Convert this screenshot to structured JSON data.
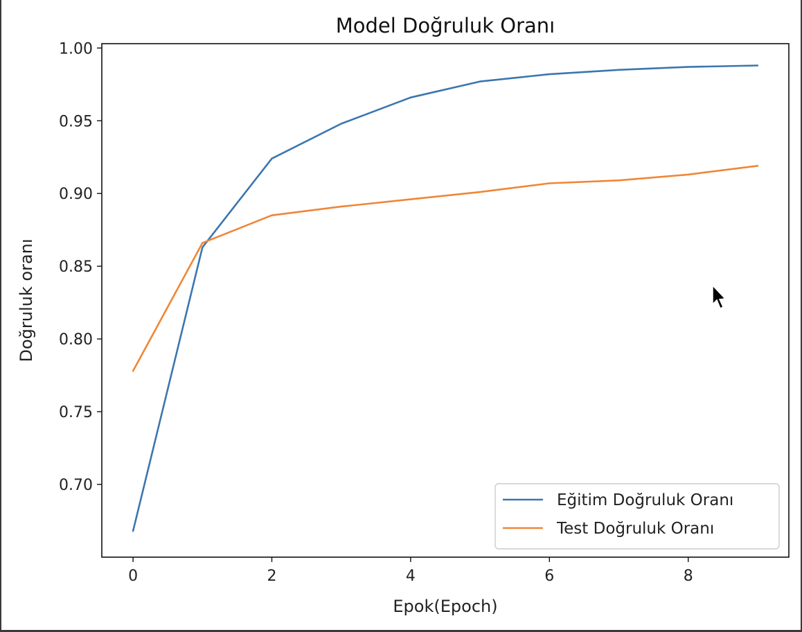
{
  "chart_data": {
    "type": "line",
    "title": "Model Doğruluk Oranı",
    "xlabel": "Epok(Epoch)",
    "ylabel": "Doğruluk oranı",
    "x": [
      0,
      1,
      2,
      3,
      4,
      5,
      6,
      7,
      8,
      9
    ],
    "xlim": [
      -0.45,
      9.45
    ],
    "ylim": [
      0.65,
      1.003
    ],
    "xticks": [
      0,
      2,
      4,
      6,
      8
    ],
    "xtick_labels": [
      "0",
      "2",
      "4",
      "6",
      "8"
    ],
    "yticks": [
      0.7,
      0.75,
      0.8,
      0.85,
      0.9,
      0.95,
      1.0
    ],
    "ytick_labels": [
      "0.70",
      "0.75",
      "0.80",
      "0.85",
      "0.90",
      "0.95",
      "1.00"
    ],
    "grid": false,
    "legend_position": "lower-right",
    "series": [
      {
        "name": "Eğitim Doğruluk Oranı",
        "color": "#3b76af",
        "values": [
          0.668,
          0.863,
          0.924,
          0.948,
          0.966,
          0.977,
          0.982,
          0.985,
          0.987,
          0.988
        ]
      },
      {
        "name": "Test Doğruluk Oranı",
        "color": "#ef8636",
        "values": [
          0.778,
          0.866,
          0.885,
          0.891,
          0.896,
          0.901,
          0.907,
          0.909,
          0.913,
          0.919
        ]
      }
    ]
  }
}
